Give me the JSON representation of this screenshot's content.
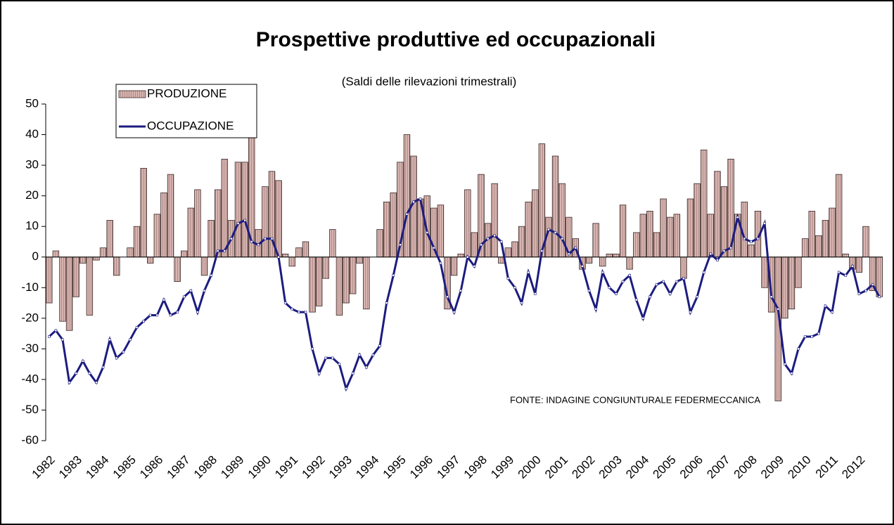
{
  "chart_data": {
    "type": "bar_line",
    "title": "Prospettive produttive ed occupazionali",
    "subtitle": "(Saldi delle rilevazioni trimestrali)",
    "annotation": "FONTE: INDAGINE CONGIUNTURALE FEDERMECCANICA",
    "legend_position": "upper left",
    "categories": [
      "1982",
      null,
      null,
      null,
      "1983",
      null,
      null,
      null,
      "1984",
      null,
      null,
      null,
      "1985",
      null,
      null,
      null,
      "1986",
      null,
      null,
      null,
      "1987",
      null,
      null,
      null,
      "1988",
      null,
      null,
      null,
      "1989",
      null,
      null,
      null,
      "1990",
      null,
      null,
      null,
      "1991",
      null,
      null,
      null,
      "1992",
      null,
      null,
      null,
      "1993",
      null,
      null,
      null,
      "1994",
      null,
      null,
      null,
      "1995",
      null,
      null,
      null,
      "1996",
      null,
      null,
      null,
      "1997",
      null,
      null,
      null,
      "1998",
      null,
      null,
      null,
      "1999",
      null,
      null,
      null,
      "2000",
      null,
      null,
      null,
      "2001",
      null,
      null,
      null,
      "2002",
      null,
      null,
      null,
      "2003",
      null,
      null,
      null,
      "2004",
      null,
      null,
      null,
      "2005",
      null,
      null,
      null,
      "2006",
      null,
      null,
      null,
      "2007",
      null,
      null,
      null,
      "2008",
      null,
      null,
      null,
      "2009",
      null,
      null,
      null,
      "2010",
      null,
      null,
      null,
      "2011",
      null,
      null,
      null,
      "2012",
      null,
      null,
      null
    ],
    "series": [
      {
        "name": "PRODUZIONE",
        "type": "bar",
        "color": "#c9a3a0",
        "values": [
          -15,
          2,
          -21,
          -24,
          -13,
          -2,
          -19,
          -1,
          3,
          12,
          -6,
          0,
          3,
          10,
          29,
          -2,
          14,
          21,
          27,
          -8,
          2,
          16,
          22,
          -6,
          12,
          22,
          32,
          12,
          31,
          31,
          42,
          9,
          23,
          28,
          25,
          1,
          -3,
          3,
          5,
          -18,
          -16,
          -7,
          9,
          -19,
          -15,
          -12,
          -2,
          -17,
          0,
          9,
          18,
          21,
          31,
          40,
          33,
          19,
          20,
          16,
          17,
          -17,
          -6,
          1,
          22,
          8,
          27,
          11,
          24,
          -2,
          3,
          5,
          10,
          18,
          22,
          37,
          13,
          33,
          24,
          13,
          6,
          -4,
          -2,
          11,
          -3,
          1,
          1,
          17,
          -4,
          8,
          14,
          15,
          8,
          19,
          13,
          14,
          -7,
          19,
          24,
          35,
          14,
          28,
          23,
          32,
          14,
          18,
          4,
          15,
          -10,
          -18,
          -47,
          -20,
          -17,
          -10,
          6,
          15,
          7,
          12,
          16,
          27,
          1,
          -4,
          -5,
          10,
          -11,
          -13
        ]
      },
      {
        "name": "OCCUPAZIONE",
        "type": "line",
        "color": "#1c1c80",
        "values": [
          -26,
          -24,
          -27,
          -41,
          -38,
          -34,
          -38,
          -41,
          -36,
          -27,
          -33,
          -31,
          -27,
          -23,
          -21,
          -19,
          -19,
          -14,
          -19,
          -18,
          -13,
          -11,
          -18,
          -11,
          -6,
          2,
          2,
          6,
          11,
          12,
          5,
          4,
          6,
          6,
          0,
          -15,
          -17,
          -18,
          -18,
          -30,
          -38,
          -33,
          -33,
          -35,
          -43,
          -38,
          -32,
          -36,
          -32,
          -29,
          -15,
          -6,
          4,
          14,
          18,
          19,
          8,
          3,
          -2,
          -13,
          -18,
          -11,
          0,
          -3,
          4,
          6,
          7,
          5,
          -7,
          -10,
          -15,
          -5,
          -12,
          2,
          9,
          8,
          6,
          1,
          3,
          -3,
          -11,
          -17,
          -5,
          -10,
          -12,
          -8,
          -6,
          -14,
          -20,
          -13,
          -9,
          -8,
          -12,
          -8,
          -7,
          -18,
          -13,
          -5,
          1,
          -1,
          2,
          3,
          13,
          6,
          5,
          6,
          11,
          -13,
          -17,
          -35,
          -38,
          -30,
          -26,
          -26,
          -25,
          -16,
          -18,
          -5,
          -6,
          -3,
          -12,
          -11,
          -9,
          -13
        ]
      }
    ],
    "ylim": [
      -60,
      50
    ],
    "yticks": [
      -60,
      -50,
      -40,
      -30,
      -20,
      -10,
      0,
      10,
      20,
      30,
      40,
      50
    ]
  }
}
